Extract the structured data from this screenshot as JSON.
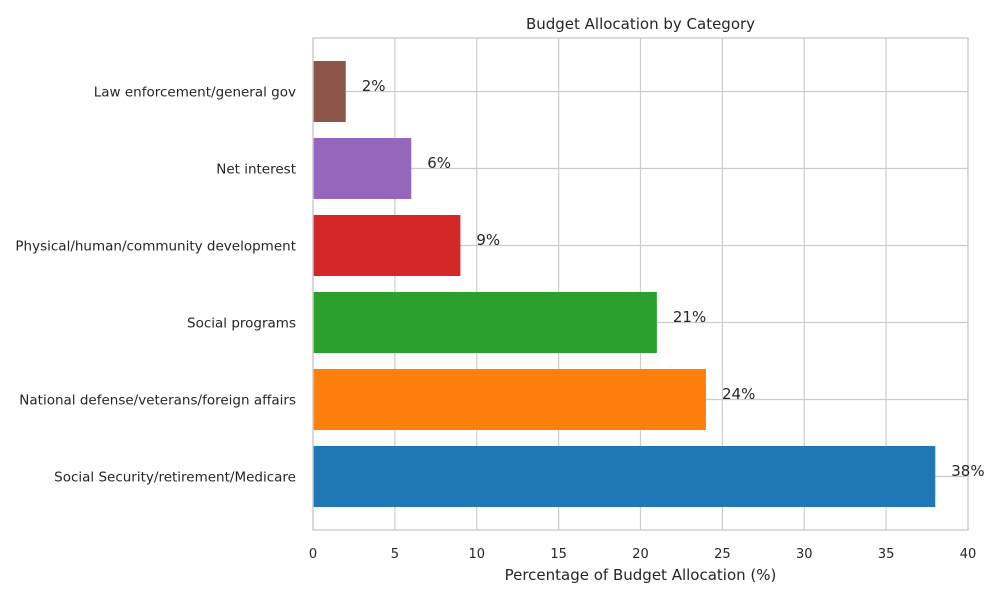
{
  "chart_data": {
    "type": "bar",
    "orientation": "horizontal",
    "title": "Budget Allocation by Category",
    "xlabel": "Percentage of Budget Allocation (%)",
    "ylabel": "",
    "xlim": [
      0,
      40
    ],
    "xticks": [
      0,
      5,
      10,
      15,
      20,
      25,
      30,
      35,
      40
    ],
    "grid": true,
    "categories": [
      "Social Security/retirement/Medicare",
      "National defense/veterans/foreign affairs",
      "Social programs",
      "Physical/human/community development",
      "Net interest",
      "Law enforcement/general gov"
    ],
    "values": [
      38,
      24,
      21,
      9,
      6,
      2
    ],
    "data_labels": [
      "38%",
      "24%",
      "21%",
      "9%",
      "6%",
      "2%"
    ],
    "colors": [
      "#1f77b4",
      "#ff7f0e",
      "#2ca02c",
      "#d62728",
      "#9467bd",
      "#8c564b"
    ]
  }
}
